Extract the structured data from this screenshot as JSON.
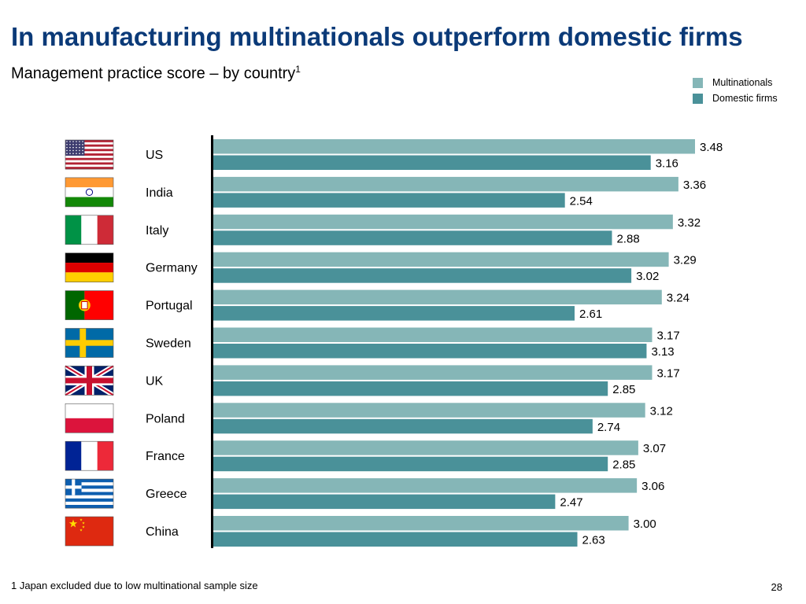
{
  "page": {
    "title": "In manufacturing multinationals outperform domestic firms",
    "subtitle": "Management practice score – by country",
    "subtitle_footnote_marker": "1",
    "footnote": "1 Japan excluded due to low multinational sample size",
    "page_number": "28"
  },
  "chart_data": {
    "type": "bar",
    "orientation": "horizontal",
    "title": "In manufacturing multinationals outperform domestic firms",
    "subtitle": "Management practice score – by country",
    "categories": [
      "US",
      "India",
      "Italy",
      "Germany",
      "Portugal",
      "Sweden",
      "UK",
      "Poland",
      "France",
      "Greece",
      "China"
    ],
    "series": [
      {
        "name": "Multinationals",
        "color": "#85b6b7",
        "values": [
          3.48,
          3.36,
          3.32,
          3.29,
          3.24,
          3.17,
          3.17,
          3.12,
          3.07,
          3.06,
          3.0
        ]
      },
      {
        "name": "Domestic firms",
        "color": "#4a9199",
        "values": [
          3.16,
          2.54,
          2.88,
          3.02,
          2.61,
          3.13,
          2.85,
          2.74,
          2.85,
          2.47,
          2.63
        ]
      }
    ],
    "data_labels": [
      [
        "3.48",
        "3.16"
      ],
      [
        "3.36",
        "2.54"
      ],
      [
        "3.32",
        "2.88"
      ],
      [
        "3.29",
        "3.02"
      ],
      [
        "3.24",
        "2.61"
      ],
      [
        "3.17",
        "3.13"
      ],
      [
        "3.17",
        "2.85"
      ],
      [
        "3.12",
        "2.74"
      ],
      [
        "3.07",
        "2.85"
      ],
      [
        "3.06",
        "2.47"
      ],
      [
        "3.00",
        "2.63"
      ]
    ],
    "flags": [
      "us-flag",
      "india-flag",
      "italy-flag",
      "germany-flag",
      "portugal-flag",
      "sweden-flag",
      "uk-flag",
      "poland-flag",
      "france-flag",
      "greece-flag",
      "china-flag"
    ],
    "legend_position": "top-right",
    "grid": false,
    "axis_line_color": "#000000"
  }
}
